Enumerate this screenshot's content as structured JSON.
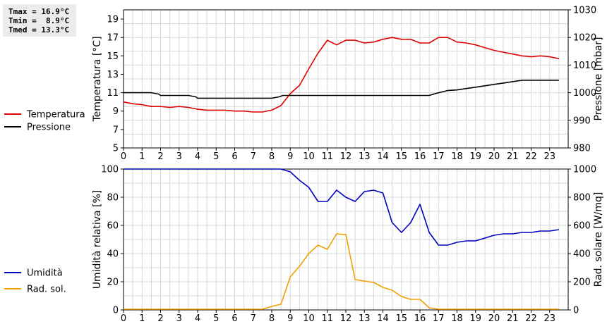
{
  "stats": {
    "tmax": "Tmax = 16.9°C",
    "tmin": "Tmin =  8.9°C",
    "tmed": "Tmed = 13.3°C"
  },
  "chart_data": [
    {
      "type": "line",
      "x_ticks": [
        0,
        1,
        2,
        3,
        4,
        5,
        6,
        7,
        8,
        9,
        10,
        11,
        12,
        13,
        14,
        15,
        16,
        17,
        18,
        19,
        20,
        21,
        22,
        23
      ],
      "xlim": [
        0,
        24
      ],
      "ylabel": "Temperatura [°C]",
      "ylabel_right": "Pressione [mbar]",
      "ylim": [
        5,
        20
      ],
      "y_ticks": [
        5,
        7,
        9,
        11,
        13,
        15,
        17,
        19
      ],
      "ylim_right": [
        980,
        1030
      ],
      "y_ticks_right": [
        980,
        990,
        1000,
        1010,
        1020,
        1030
      ],
      "grid": true,
      "legend": "left",
      "series": [
        {
          "name": "Temperatura",
          "axis": "left",
          "color": "#e00000",
          "x": [
            0,
            0.5,
            1,
            1.5,
            2,
            2.5,
            3,
            3.5,
            4,
            4.5,
            5,
            5.5,
            6,
            6.5,
            7,
            7.5,
            8,
            8.5,
            9,
            9.5,
            10,
            10.5,
            11,
            11.5,
            12,
            12.5,
            13,
            13.5,
            14,
            14.5,
            15,
            15.5,
            16,
            16.5,
            17,
            17.5,
            18,
            18.5,
            19,
            19.5,
            20,
            20.5,
            21,
            21.5,
            22,
            22.5,
            23,
            23.5
          ],
          "y": [
            10.0,
            9.8,
            9.7,
            9.5,
            9.5,
            9.4,
            9.5,
            9.4,
            9.2,
            9.1,
            9.1,
            9.1,
            9.0,
            9.0,
            8.9,
            8.9,
            9.1,
            9.6,
            10.9,
            11.8,
            13.6,
            15.3,
            16.7,
            16.2,
            16.7,
            16.7,
            16.4,
            16.5,
            16.8,
            17.0,
            16.8,
            16.8,
            16.4,
            16.4,
            17.0,
            17.0,
            16.5,
            16.4,
            16.2,
            15.9,
            15.6,
            15.4,
            15.2,
            15.0,
            14.9,
            15.0,
            14.9,
            14.7
          ]
        },
        {
          "name": "Pressione",
          "axis": "right",
          "color": "#000000",
          "x": [
            0,
            1.5,
            1.9,
            2,
            3.5,
            3.9,
            4,
            8,
            8.4,
            8.6,
            16.5,
            16.9,
            17.5,
            18,
            18.5,
            19,
            19.5,
            20,
            20.5,
            21,
            21.5,
            23.5
          ],
          "y": [
            1000,
            1000,
            999.5,
            999,
            999,
            998.5,
            998,
            998,
            998.5,
            999,
            999,
            999.8,
            1000.8,
            1001,
            1001.5,
            1002,
            1002.5,
            1003,
            1003.5,
            1004,
            1004.5,
            1004.5
          ]
        }
      ]
    },
    {
      "type": "line",
      "x_ticks": [
        0,
        1,
        2,
        3,
        4,
        5,
        6,
        7,
        8,
        9,
        10,
        11,
        12,
        13,
        14,
        15,
        16,
        17,
        18,
        19,
        20,
        21,
        22,
        23
      ],
      "xlim": [
        0,
        24
      ],
      "ylabel": "Umidità relativa [%]",
      "ylabel_right": "Rad. solare [W/mq]",
      "ylim": [
        0,
        100
      ],
      "y_ticks": [
        0,
        20,
        40,
        60,
        80,
        100
      ],
      "ylim_right": [
        0,
        1000
      ],
      "y_ticks_right": [
        0,
        200,
        400,
        600,
        800,
        1000
      ],
      "grid": true,
      "legend": "left",
      "series": [
        {
          "name": "Umidità",
          "axis": "left",
          "color": "#0000c0",
          "x": [
            0,
            1,
            2,
            3,
            4,
            5,
            6,
            7,
            8,
            8.5,
            9,
            9.5,
            10,
            10.5,
            11,
            11.5,
            12,
            12.5,
            13,
            13.5,
            14,
            14.5,
            15,
            15.5,
            16,
            16.5,
            17,
            17.5,
            18,
            18.5,
            19,
            19.5,
            20,
            20.5,
            21,
            21.5,
            22,
            22.5,
            23,
            23.5
          ],
          "y": [
            100,
            100,
            100,
            100,
            100,
            100,
            100,
            100,
            100,
            100,
            98,
            92,
            87,
            77,
            77,
            85,
            80,
            77,
            84,
            85,
            83,
            62,
            55,
            62,
            75,
            55,
            46,
            46,
            48,
            49,
            49,
            51,
            53,
            54,
            54,
            55,
            55,
            56,
            56,
            57
          ]
        },
        {
          "name": "Rad. sol.",
          "axis": "right",
          "color": "#f0a000",
          "x": [
            0,
            1,
            2,
            3,
            4,
            5,
            6,
            7,
            7.5,
            8,
            8.5,
            9,
            9.5,
            10,
            10.5,
            11,
            11.5,
            12,
            12.5,
            13,
            13.5,
            14,
            14.5,
            15,
            15.5,
            16,
            16.5,
            17,
            18,
            19,
            20,
            21,
            22,
            23,
            23.5
          ],
          "y": [
            5,
            5,
            5,
            5,
            5,
            5,
            5,
            5,
            5,
            25,
            40,
            235,
            310,
            400,
            460,
            430,
            540,
            535,
            215,
            205,
            195,
            160,
            140,
            95,
            75,
            75,
            15,
            5,
            5,
            5,
            5,
            5,
            5,
            5,
            5
          ]
        }
      ]
    }
  ]
}
